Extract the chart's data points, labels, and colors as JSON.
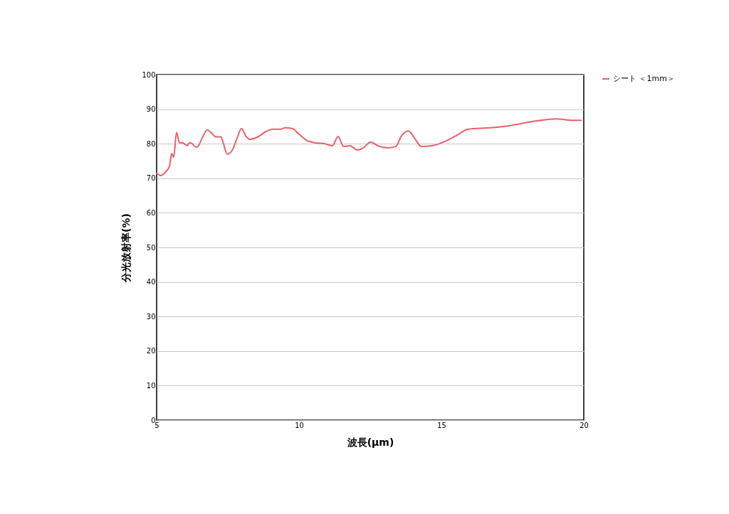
{
  "chart_data": {
    "type": "line",
    "xlabel": "波長(µm)",
    "ylabel": "分光放射率(%)",
    "xlim": [
      5,
      20
    ],
    "xticks": [
      5,
      10,
      15,
      20
    ],
    "ylim": [
      0,
      100
    ],
    "yticks": [
      0,
      10,
      20,
      30,
      40,
      50,
      60,
      70,
      80,
      90,
      100
    ],
    "grid": "y",
    "legend": "right",
    "line_style": "solid",
    "marker": "none",
    "series": [
      {
        "name": "シート ＜1mm＞",
        "color": "#e8606a",
        "x": [
          5.0,
          5.15,
          5.33,
          5.45,
          5.53,
          5.6,
          5.7,
          5.8,
          5.9,
          6.08,
          6.15,
          6.25,
          6.38,
          6.45,
          6.58,
          6.78,
          6.9,
          7.08,
          7.26,
          7.33,
          7.48,
          7.66,
          7.83,
          7.98,
          8.13,
          8.28,
          8.58,
          8.83,
          9.09,
          9.34,
          9.51,
          9.76,
          10.01,
          10.34,
          10.66,
          10.91,
          11.17,
          11.37,
          11.57,
          11.79,
          12.04,
          12.22,
          12.52,
          12.77,
          13.1,
          13.4,
          13.6,
          13.85,
          14.05,
          14.3,
          14.67,
          15.18,
          15.6,
          15.93,
          16.68,
          17.36,
          18.18,
          19.04,
          19.61,
          19.91
        ],
        "values": [
          71.4,
          70.8,
          72.0,
          73.5,
          77.2,
          76.1,
          83.3,
          80.3,
          80.3,
          79.5,
          80.3,
          80.0,
          79.0,
          79.2,
          81.3,
          84.0,
          83.3,
          82.0,
          82.0,
          80.5,
          77.0,
          78.2,
          81.7,
          84.4,
          82.3,
          81.3,
          82.1,
          83.5,
          84.2,
          84.2,
          84.6,
          84.4,
          82.7,
          80.7,
          80.2,
          80.0,
          79.4,
          82.1,
          79.2,
          79.4,
          78.2,
          78.6,
          80.5,
          79.4,
          78.8,
          79.2,
          82.3,
          83.7,
          81.7,
          79.2,
          79.4,
          80.9,
          82.7,
          84.2,
          84.6,
          85.2,
          86.4,
          87.2,
          86.8,
          86.8
        ]
      }
    ]
  }
}
